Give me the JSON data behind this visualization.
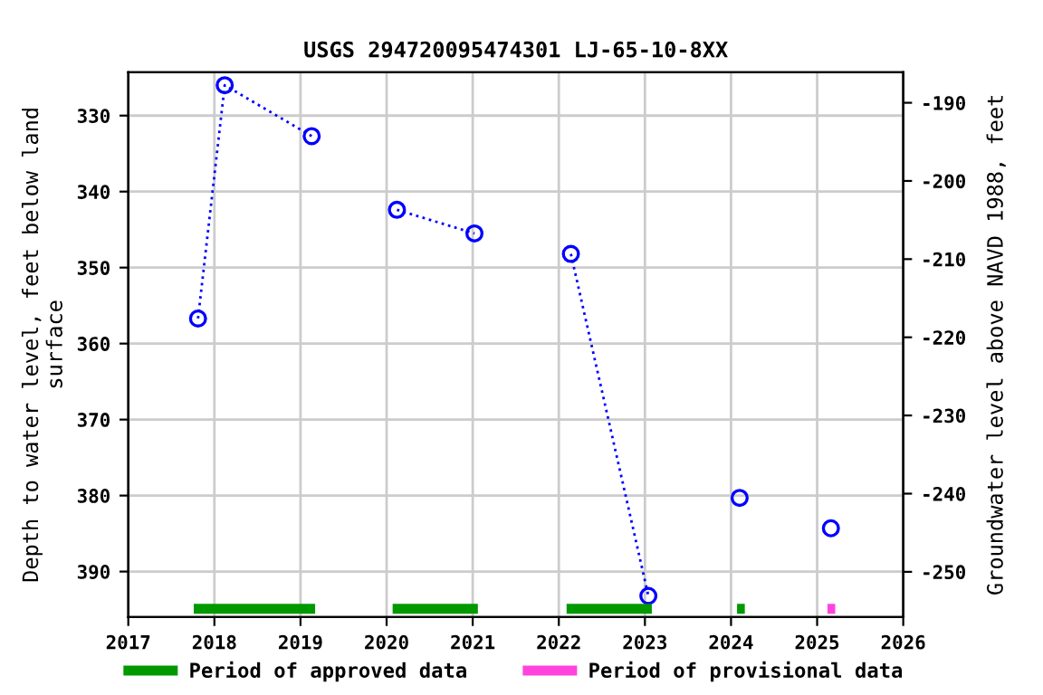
{
  "chart_data": {
    "type": "line",
    "title": "USGS 294720095474301 LJ-65-10-8XX",
    "xlabel": null,
    "ylabel": "Depth to water level, feet below land\nsurface",
    "y2label": "Groundwater level above NAVD 1988, feet",
    "xlim": [
      2017,
      2026
    ],
    "xticks": [
      2017,
      2018,
      2019,
      2020,
      2021,
      2022,
      2023,
      2024,
      2025,
      2026
    ],
    "ylim": [
      396.0,
      324.3
    ],
    "yticks": [
      330,
      340,
      350,
      360,
      370,
      380,
      390
    ],
    "y2lim": [
      -255.8,
      -186.1
    ],
    "y2ticks": [
      -190,
      -200,
      -210,
      -220,
      -230,
      -240,
      -250
    ],
    "grid": true,
    "legend": "bottom",
    "series": [
      {
        "color": "#0000ff",
        "marker": "circle",
        "line_style": "dotted",
        "x": [
          2017.81,
          2018.12,
          2019.13,
          2019.6,
          2020.12,
          2021.02,
          2021.6,
          2022.14,
          2023.04,
          2023.6,
          2024.1,
          2024.6,
          2025.16
        ],
        "values": [
          356.7,
          326.0,
          332.7,
          null,
          342.4,
          345.5,
          null,
          348.2,
          393.2,
          null,
          380.3,
          null,
          384.3
        ]
      },
      {
        "name": "Period of approved data",
        "color": "#009900",
        "marker": "none",
        "line_style": "solid",
        "x": [
          2017.76,
          2019.17,
          2019.6,
          2020.07,
          2021.06,
          2021.6,
          2022.09,
          2023.08,
          2023.6,
          2024.07,
          2024.16
        ],
        "values": [
          394.9,
          394.9,
          null,
          394.9,
          394.9,
          null,
          394.9,
          394.9,
          null,
          394.9,
          394.9
        ]
      },
      {
        "name": "Period of provisional data",
        "color": "#ff44dd",
        "marker": "none",
        "line_style": "solid",
        "x": [
          2025.12,
          2025.21
        ],
        "values": [
          394.9,
          394.9
        ]
      }
    ]
  }
}
